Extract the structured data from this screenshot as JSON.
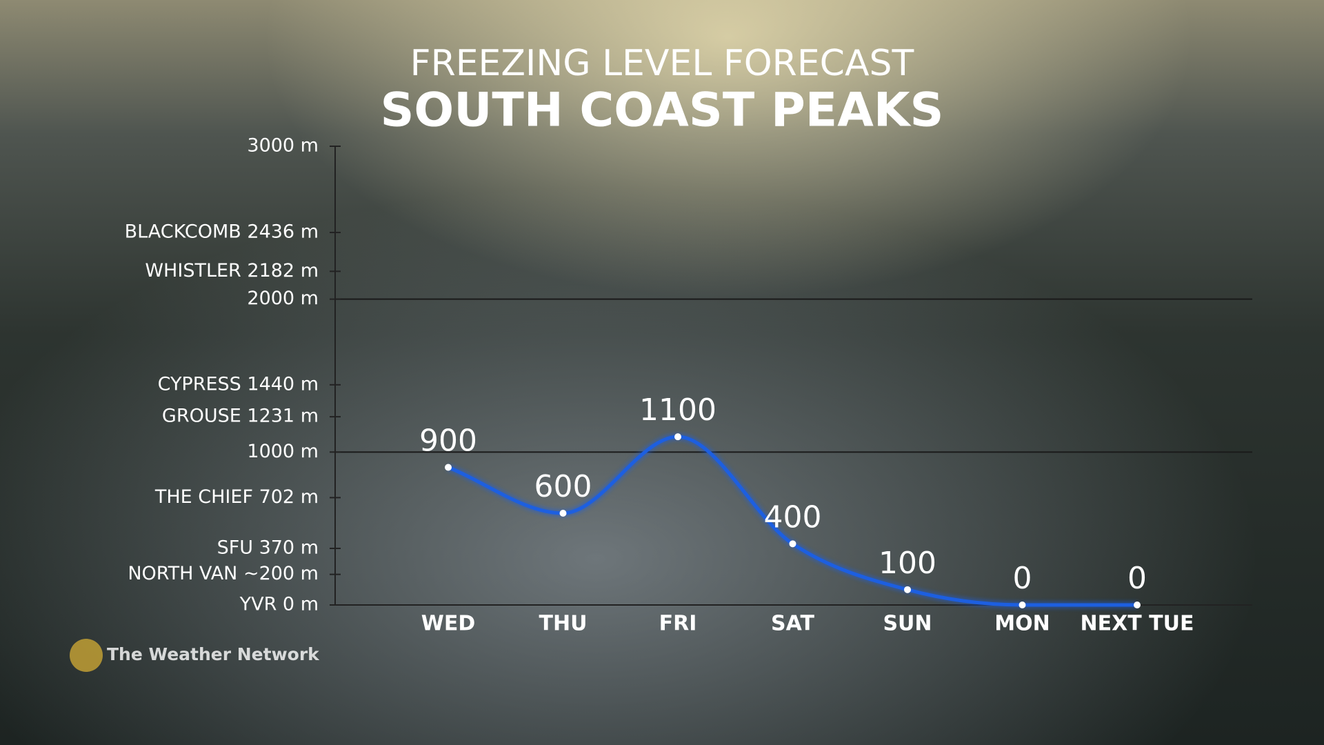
{
  "chart_data": {
    "type": "line",
    "title": "FREEZING LEVEL FORECAST",
    "subtitle": "SOUTH COAST PEAKS",
    "categories": [
      "WED",
      "THU",
      "FRI",
      "SAT",
      "SUN",
      "MON",
      "NEXT TUE"
    ],
    "values": [
      900,
      600,
      1100,
      400,
      100,
      0,
      0
    ],
    "color": "#1d5fe0",
    "ylim": [
      0,
      3000
    ],
    "yticks": [
      {
        "value": 3000,
        "label": "3000 m"
      },
      {
        "value": 2436,
        "label": "BLACKCOMB 2436 m"
      },
      {
        "value": 2182,
        "label": "WHISTLER 2182 m"
      },
      {
        "value": 2000,
        "label": "2000 m"
      },
      {
        "value": 1440,
        "label": "CYPRESS 1440 m"
      },
      {
        "value": 1231,
        "label": "GROUSE 1231 m"
      },
      {
        "value": 1000,
        "label": "1000 m"
      },
      {
        "value": 702,
        "label": "THE CHIEF 702 m"
      },
      {
        "value": 370,
        "label": "SFU 370 m"
      },
      {
        "value": 200,
        "label": "NORTH VAN ~200 m"
      },
      {
        "value": 0,
        "label": "YVR 0 m"
      }
    ],
    "ygrid": [
      1000,
      2000
    ],
    "logo": "The Weather Network"
  }
}
